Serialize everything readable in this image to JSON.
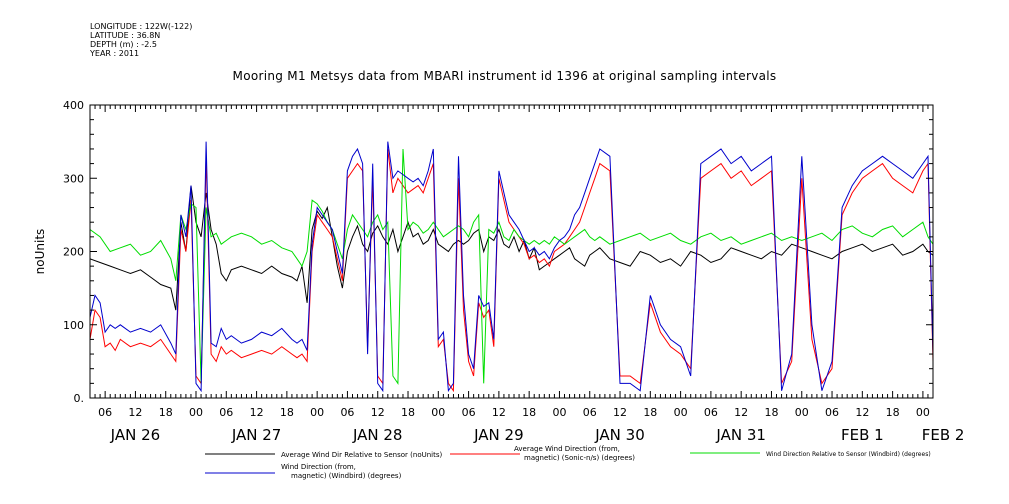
{
  "header": {
    "meta_lines": [
      "LONGITUDE : 122W(-122)",
      "LATITUDE : 36.8N",
      "DEPTH (m) : -2.5",
      "YEAR : 2011"
    ],
    "title": "Mooring M1 Metsys data from MBARI instrument id 1396 at original sampling intervals"
  },
  "chart_data": {
    "type": "line",
    "title": "Mooring M1 Metsys data from MBARI instrument id 1396 at original sampling intervals",
    "ylabel": "noUnits",
    "xlabel": "",
    "ylim": [
      0,
      400
    ],
    "yticks": [
      0,
      100,
      200,
      300,
      400
    ],
    "ytick_labels": [
      "0.",
      "100",
      "200",
      "300",
      "400"
    ],
    "x_units": "hours since JAN 26 00:00, 2011",
    "xlim": [
      3,
      170
    ],
    "xticks": [
      6,
      12,
      18,
      24,
      30,
      36,
      42,
      48,
      54,
      60,
      66,
      72,
      78,
      84,
      90,
      96,
      102,
      108,
      114,
      120,
      126,
      132,
      138,
      144,
      150,
      156,
      162,
      168
    ],
    "xtick_labels": [
      "06",
      "12",
      "18",
      "00",
      "06",
      "12",
      "18",
      "00",
      "06",
      "12",
      "18",
      "00",
      "06",
      "12",
      "18",
      "00",
      "06",
      "12",
      "18",
      "00",
      "06",
      "12",
      "18",
      "00",
      "06",
      "12",
      "18",
      "00"
    ],
    "day_labels": [
      {
        "x": 12,
        "label": "JAN 26"
      },
      {
        "x": 36,
        "label": "JAN 27"
      },
      {
        "x": 60,
        "label": "JAN 28"
      },
      {
        "x": 84,
        "label": "JAN 29"
      },
      {
        "x": 108,
        "label": "JAN 30"
      },
      {
        "x": 132,
        "label": "JAN 31"
      },
      {
        "x": 156,
        "label": "FEB  1"
      },
      {
        "x": 172,
        "label": "FEB  2"
      }
    ],
    "grid": false,
    "legend_position": "bottom",
    "series": [
      {
        "name": "Average Wind Dir Relative to Sensor (noUnits)",
        "color": "#000000",
        "x": [
          3,
          5,
          7,
          9,
          11,
          13,
          15,
          17,
          19,
          20,
          21,
          22,
          23,
          24,
          25,
          26,
          27,
          28,
          29,
          30,
          31,
          33,
          35,
          37,
          39,
          41,
          43,
          44,
          45,
          46,
          47,
          48,
          49,
          50,
          51,
          52,
          53,
          54,
          55,
          56,
          57,
          58,
          59,
          60,
          61,
          62,
          63,
          64,
          65,
          66,
          67,
          68,
          69,
          70,
          71,
          72,
          73,
          74,
          75,
          76,
          77,
          78,
          79,
          80,
          81,
          82,
          83,
          84,
          85,
          86,
          87,
          88,
          89,
          90,
          91,
          92,
          93,
          94,
          95,
          96,
          97,
          98,
          99,
          100,
          101,
          102,
          103,
          104,
          106,
          108,
          110,
          112,
          114,
          116,
          118,
          120,
          122,
          124,
          126,
          128,
          130,
          132,
          134,
          136,
          138,
          140,
          142,
          144,
          146,
          148,
          150,
          152,
          154,
          156,
          158,
          160,
          162,
          164,
          166,
          168,
          169,
          170
        ],
        "y": [
          190,
          185,
          180,
          175,
          170,
          175,
          165,
          155,
          150,
          120,
          240,
          200,
          290,
          240,
          220,
          280,
          230,
          210,
          170,
          160,
          175,
          180,
          175,
          170,
          180,
          170,
          165,
          160,
          180,
          130,
          230,
          255,
          245,
          260,
          220,
          180,
          150,
          200,
          220,
          235,
          210,
          200,
          225,
          235,
          220,
          210,
          230,
          200,
          220,
          240,
          220,
          225,
          210,
          215,
          230,
          210,
          205,
          200,
          210,
          215,
          210,
          215,
          225,
          230,
          200,
          220,
          215,
          230,
          210,
          205,
          220,
          200,
          215,
          190,
          205,
          175,
          180,
          185,
          190,
          195,
          200,
          205,
          190,
          185,
          180,
          195,
          200,
          205,
          190,
          185,
          180,
          200,
          195,
          185,
          190,
          180,
          200,
          195,
          185,
          190,
          205,
          200,
          195,
          190,
          200,
          195,
          210,
          205,
          200,
          195,
          190,
          200,
          205,
          210,
          200,
          205,
          210,
          195,
          200,
          210,
          200,
          195
        ]
      },
      {
        "name": "Average Wind Direction (from, magnetic) (Sonic-n/s) (degrees)",
        "color": "#ff0000",
        "x": [
          3,
          4,
          5,
          6,
          7,
          8,
          9,
          11,
          13,
          15,
          17,
          19,
          20,
          21,
          22,
          23,
          24,
          25,
          26,
          27,
          28,
          29,
          30,
          31,
          33,
          35,
          37,
          39,
          41,
          43,
          44,
          45,
          46,
          47,
          48,
          49,
          50,
          51,
          52,
          53,
          54,
          55,
          56,
          57,
          58,
          59,
          60,
          61,
          62,
          63,
          64,
          65,
          66,
          67,
          68,
          69,
          70,
          71,
          72,
          73,
          74,
          75,
          76,
          77,
          78,
          79,
          80,
          81,
          82,
          83,
          84,
          85,
          86,
          87,
          88,
          89,
          90,
          91,
          92,
          93,
          94,
          95,
          96,
          97,
          98,
          99,
          100,
          101,
          102,
          103,
          104,
          106,
          108,
          110,
          112,
          114,
          116,
          118,
          120,
          122,
          124,
          126,
          128,
          130,
          132,
          134,
          136,
          138,
          140,
          142,
          144,
          146,
          148,
          150,
          152,
          154,
          156,
          158,
          160,
          162,
          164,
          166,
          168,
          169,
          170
        ],
        "y": [
          80,
          120,
          110,
          70,
          75,
          65,
          80,
          70,
          75,
          70,
          80,
          60,
          50,
          230,
          200,
          270,
          30,
          20,
          330,
          60,
          50,
          70,
          60,
          65,
          55,
          60,
          65,
          60,
          70,
          60,
          55,
          60,
          50,
          200,
          250,
          240,
          230,
          220,
          190,
          160,
          300,
          310,
          320,
          310,
          70,
          300,
          30,
          20,
          340,
          280,
          300,
          290,
          280,
          285,
          290,
          280,
          300,
          320,
          70,
          80,
          20,
          10,
          300,
          120,
          50,
          30,
          130,
          110,
          120,
          70,
          300,
          270,
          240,
          230,
          220,
          210,
          190,
          195,
          185,
          190,
          180,
          200,
          205,
          210,
          220,
          230,
          240,
          260,
          280,
          300,
          320,
          310,
          30,
          30,
          20,
          130,
          90,
          70,
          60,
          40,
          300,
          310,
          320,
          300,
          310,
          290,
          300,
          310,
          20,
          50,
          300,
          80,
          20,
          40,
          250,
          280,
          300,
          310,
          320,
          300,
          290,
          280,
          310,
          320,
          50
        ]
      },
      {
        "name": "Wind Direction Relative to Sensor (Windbird) (degrees)",
        "color": "#00dd00",
        "x": [
          3,
          5,
          7,
          9,
          11,
          13,
          15,
          17,
          19,
          20,
          21,
          22,
          23,
          24,
          25,
          26,
          27,
          28,
          29,
          30,
          31,
          33,
          35,
          37,
          39,
          41,
          43,
          44,
          45,
          46,
          47,
          48,
          49,
          50,
          51,
          52,
          53,
          54,
          55,
          56,
          57,
          58,
          59,
          60,
          61,
          62,
          63,
          64,
          65,
          66,
          67,
          68,
          69,
          70,
          71,
          72,
          73,
          74,
          75,
          76,
          77,
          78,
          79,
          80,
          81,
          82,
          83,
          84,
          85,
          86,
          87,
          88,
          89,
          90,
          91,
          92,
          93,
          94,
          95,
          96,
          97,
          98,
          99,
          100,
          101,
          102,
          103,
          104,
          106,
          108,
          110,
          112,
          114,
          116,
          118,
          120,
          122,
          124,
          126,
          128,
          130,
          132,
          134,
          136,
          138,
          140,
          142,
          144,
          146,
          148,
          150,
          152,
          154,
          156,
          158,
          160,
          162,
          164,
          166,
          168,
          169,
          170
        ],
        "y": [
          230,
          220,
          200,
          205,
          210,
          195,
          200,
          215,
          190,
          160,
          250,
          230,
          265,
          260,
          20,
          260,
          220,
          225,
          210,
          215,
          220,
          225,
          220,
          210,
          215,
          205,
          200,
          190,
          180,
          200,
          270,
          265,
          255,
          240,
          230,
          210,
          190,
          230,
          250,
          240,
          230,
          220,
          240,
          250,
          230,
          240,
          30,
          20,
          340,
          230,
          240,
          235,
          225,
          230,
          240,
          230,
          220,
          225,
          230,
          235,
          230,
          220,
          240,
          250,
          20,
          230,
          225,
          240,
          220,
          215,
          230,
          220,
          215,
          210,
          215,
          210,
          215,
          210,
          220,
          215,
          210,
          215,
          220,
          225,
          230,
          220,
          215,
          220,
          210,
          215,
          220,
          225,
          215,
          220,
          225,
          215,
          210,
          220,
          225,
          215,
          220,
          210,
          215,
          220,
          225,
          215,
          220,
          215,
          220,
          225,
          215,
          230,
          235,
          225,
          220,
          230,
          235,
          220,
          230,
          240,
          220,
          210
        ]
      },
      {
        "name": "Wind Direction (from, magnetic) (Windbird) (degrees)",
        "color": "#0000cc",
        "x": [
          3,
          4,
          5,
          6,
          7,
          8,
          9,
          11,
          13,
          15,
          17,
          19,
          20,
          21,
          22,
          23,
          24,
          25,
          26,
          27,
          28,
          29,
          30,
          31,
          33,
          35,
          37,
          39,
          41,
          43,
          44,
          45,
          46,
          47,
          48,
          49,
          50,
          51,
          52,
          53,
          54,
          55,
          56,
          57,
          58,
          59,
          60,
          61,
          62,
          63,
          64,
          65,
          66,
          67,
          68,
          69,
          70,
          71,
          72,
          73,
          74,
          75,
          76,
          77,
          78,
          79,
          80,
          81,
          82,
          83,
          84,
          85,
          86,
          87,
          88,
          89,
          90,
          91,
          92,
          93,
          94,
          95,
          96,
          97,
          98,
          99,
          100,
          101,
          102,
          103,
          104,
          106,
          108,
          110,
          112,
          114,
          116,
          118,
          120,
          122,
          124,
          126,
          128,
          130,
          132,
          134,
          136,
          138,
          140,
          142,
          144,
          146,
          148,
          150,
          152,
          154,
          156,
          158,
          160,
          162,
          164,
          166,
          168,
          169,
          170
        ],
        "y": [
          110,
          140,
          130,
          90,
          100,
          95,
          100,
          90,
          95,
          90,
          100,
          75,
          60,
          250,
          220,
          290,
          20,
          10,
          350,
          75,
          70,
          95,
          80,
          85,
          75,
          80,
          90,
          85,
          95,
          80,
          75,
          80,
          65,
          210,
          260,
          250,
          240,
          230,
          200,
          170,
          310,
          330,
          340,
          320,
          60,
          320,
          20,
          10,
          350,
          300,
          310,
          305,
          300,
          295,
          300,
          290,
          310,
          340,
          80,
          90,
          10,
          20,
          330,
          140,
          60,
          40,
          140,
          125,
          130,
          80,
          310,
          280,
          250,
          240,
          230,
          215,
          200,
          205,
          195,
          200,
          190,
          205,
          215,
          220,
          230,
          250,
          260,
          280,
          300,
          320,
          340,
          330,
          20,
          20,
          10,
          140,
          100,
          80,
          70,
          30,
          320,
          330,
          340,
          320,
          330,
          310,
          320,
          330,
          10,
          60,
          330,
          100,
          10,
          50,
          260,
          290,
          310,
          320,
          330,
          320,
          310,
          300,
          320,
          330,
          60
        ]
      }
    ]
  }
}
